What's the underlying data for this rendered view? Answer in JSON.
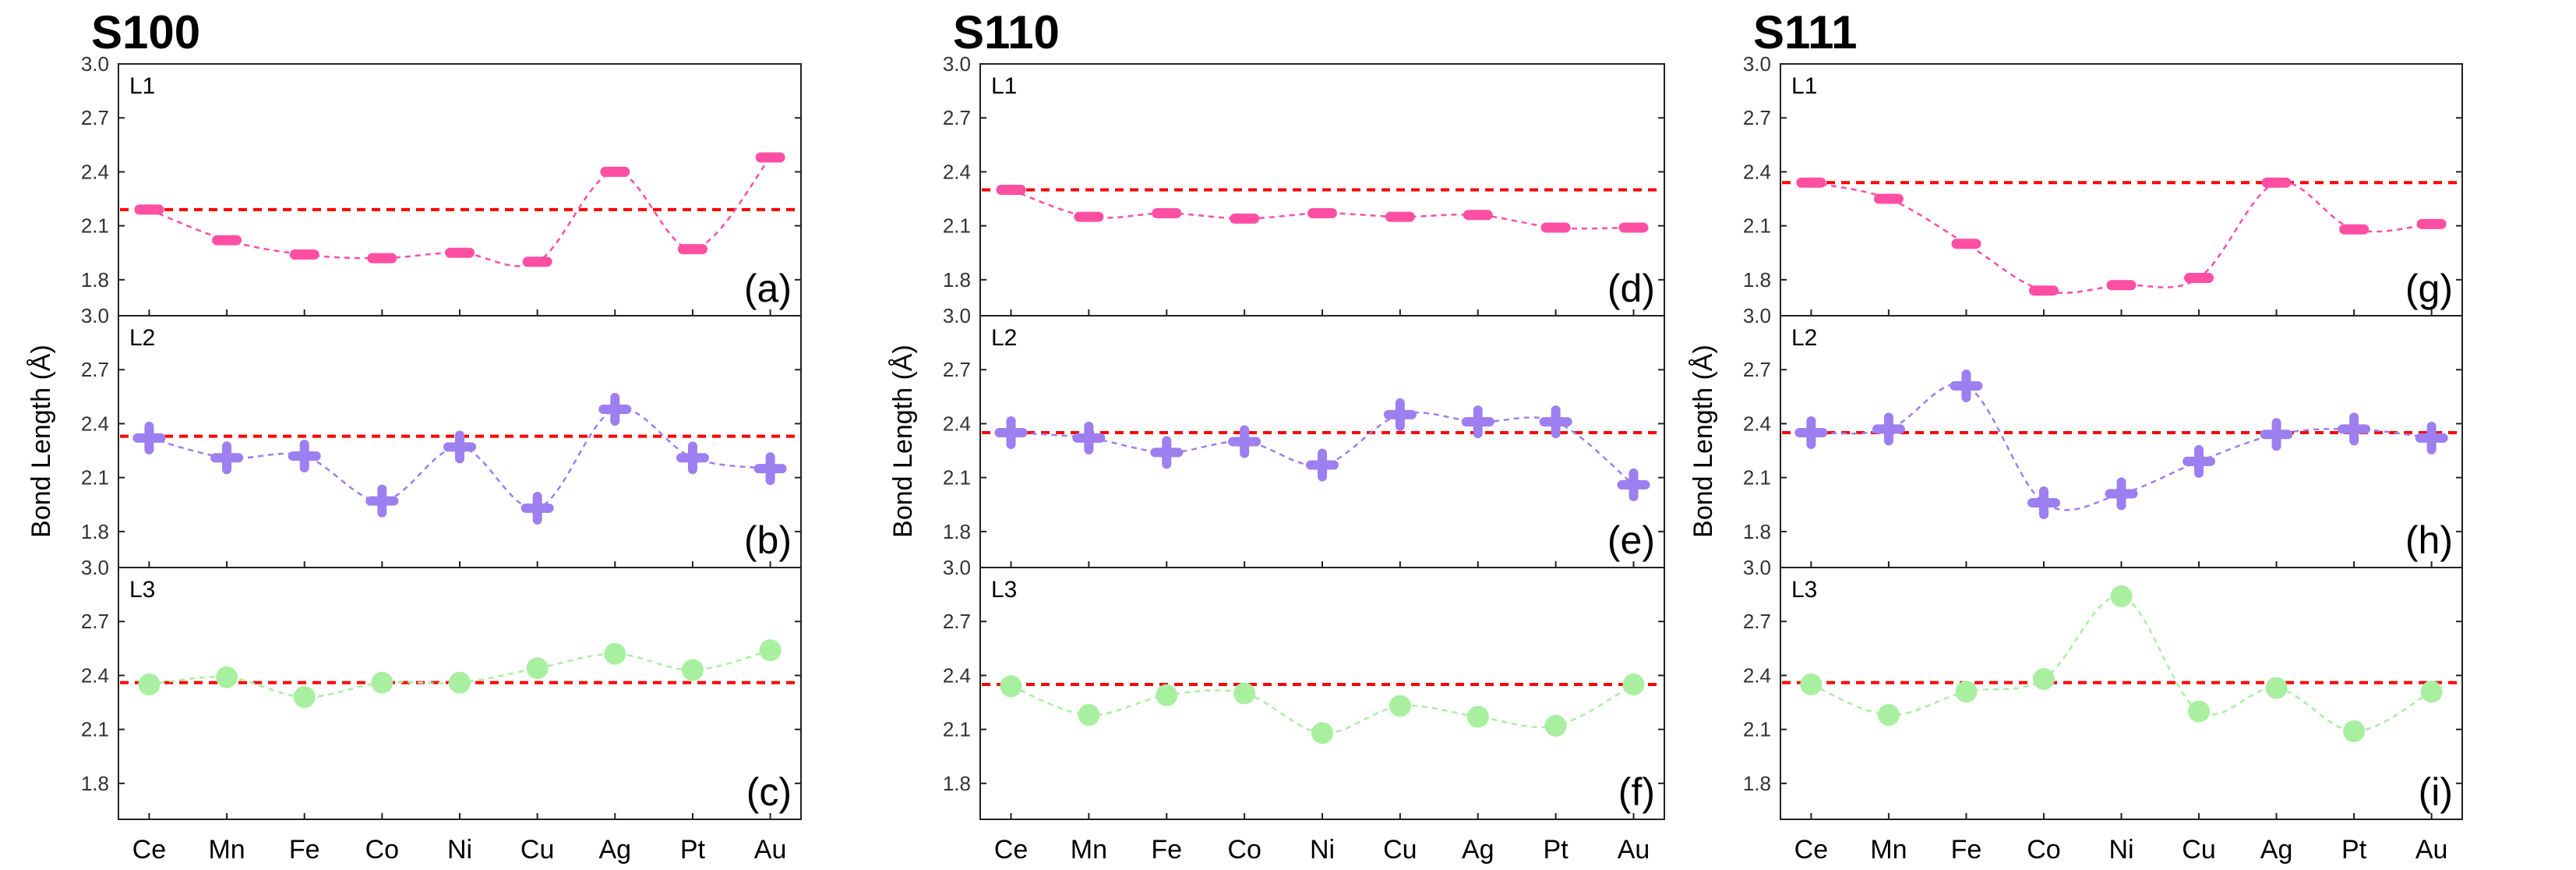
{
  "chart_data": {
    "type": "line",
    "categories": [
      "Ce",
      "Mn",
      "Fe",
      "Co",
      "Ni",
      "Cu",
      "Ag",
      "Pt",
      "Au"
    ],
    "ylabel": "Bond Length (Å)",
    "ylim": [
      1.6,
      3.0
    ],
    "yticks": [
      "1.8",
      "2.1",
      "2.4",
      "2.7",
      "3.0"
    ],
    "colors": {
      "L1": "#ff4fa3",
      "L2": "#9d7ff0",
      "L3": "#a8f0a0",
      "reference": "#ff0000"
    },
    "columns": [
      {
        "title": "S100",
        "panels": [
          {
            "label": "L1",
            "letter": "(a)",
            "marker": "dash",
            "reference": 2.19,
            "values": [
              2.19,
              2.02,
              1.94,
              1.92,
              1.95,
              1.9,
              2.4,
              1.97,
              2.48
            ]
          },
          {
            "label": "L2",
            "letter": "(b)",
            "marker": "plus",
            "reference": 2.33,
            "values": [
              2.32,
              2.21,
              2.22,
              1.97,
              2.27,
              1.93,
              2.48,
              2.21,
              2.15
            ]
          },
          {
            "label": "L3",
            "letter": "(c)",
            "marker": "circle",
            "reference": 2.36,
            "values": [
              2.35,
              2.39,
              2.28,
              2.36,
              2.36,
              2.44,
              2.52,
              2.43,
              2.54
            ]
          }
        ]
      },
      {
        "title": "S110",
        "panels": [
          {
            "label": "L1",
            "letter": "(d)",
            "marker": "dash",
            "reference": 2.3,
            "values": [
              2.3,
              2.15,
              2.17,
              2.14,
              2.17,
              2.15,
              2.16,
              2.09,
              2.09
            ]
          },
          {
            "label": "L2",
            "letter": "(e)",
            "marker": "plus",
            "reference": 2.35,
            "values": [
              2.35,
              2.32,
              2.24,
              2.3,
              2.17,
              2.45,
              2.41,
              2.41,
              2.06
            ]
          },
          {
            "label": "L3",
            "letter": "(f)",
            "marker": "circle",
            "reference": 2.35,
            "values": [
              2.34,
              2.18,
              2.29,
              2.3,
              2.08,
              2.23,
              2.17,
              2.12,
              2.35
            ]
          }
        ]
      },
      {
        "title": "S111",
        "panels": [
          {
            "label": "L1",
            "letter": "(g)",
            "marker": "dash",
            "reference": 2.34,
            "values": [
              2.34,
              2.25,
              2.0,
              1.74,
              1.77,
              1.81,
              2.34,
              2.08,
              2.11
            ]
          },
          {
            "label": "L2",
            "letter": "(h)",
            "marker": "plus",
            "reference": 2.35,
            "values": [
              2.35,
              2.37,
              2.61,
              1.96,
              2.01,
              2.19,
              2.34,
              2.37,
              2.32
            ]
          },
          {
            "label": "L3",
            "letter": "(i)",
            "marker": "circle",
            "reference": 2.36,
            "values": [
              2.35,
              2.18,
              2.31,
              2.38,
              2.84,
              2.2,
              2.33,
              2.09,
              2.31
            ]
          }
        ]
      }
    ]
  }
}
